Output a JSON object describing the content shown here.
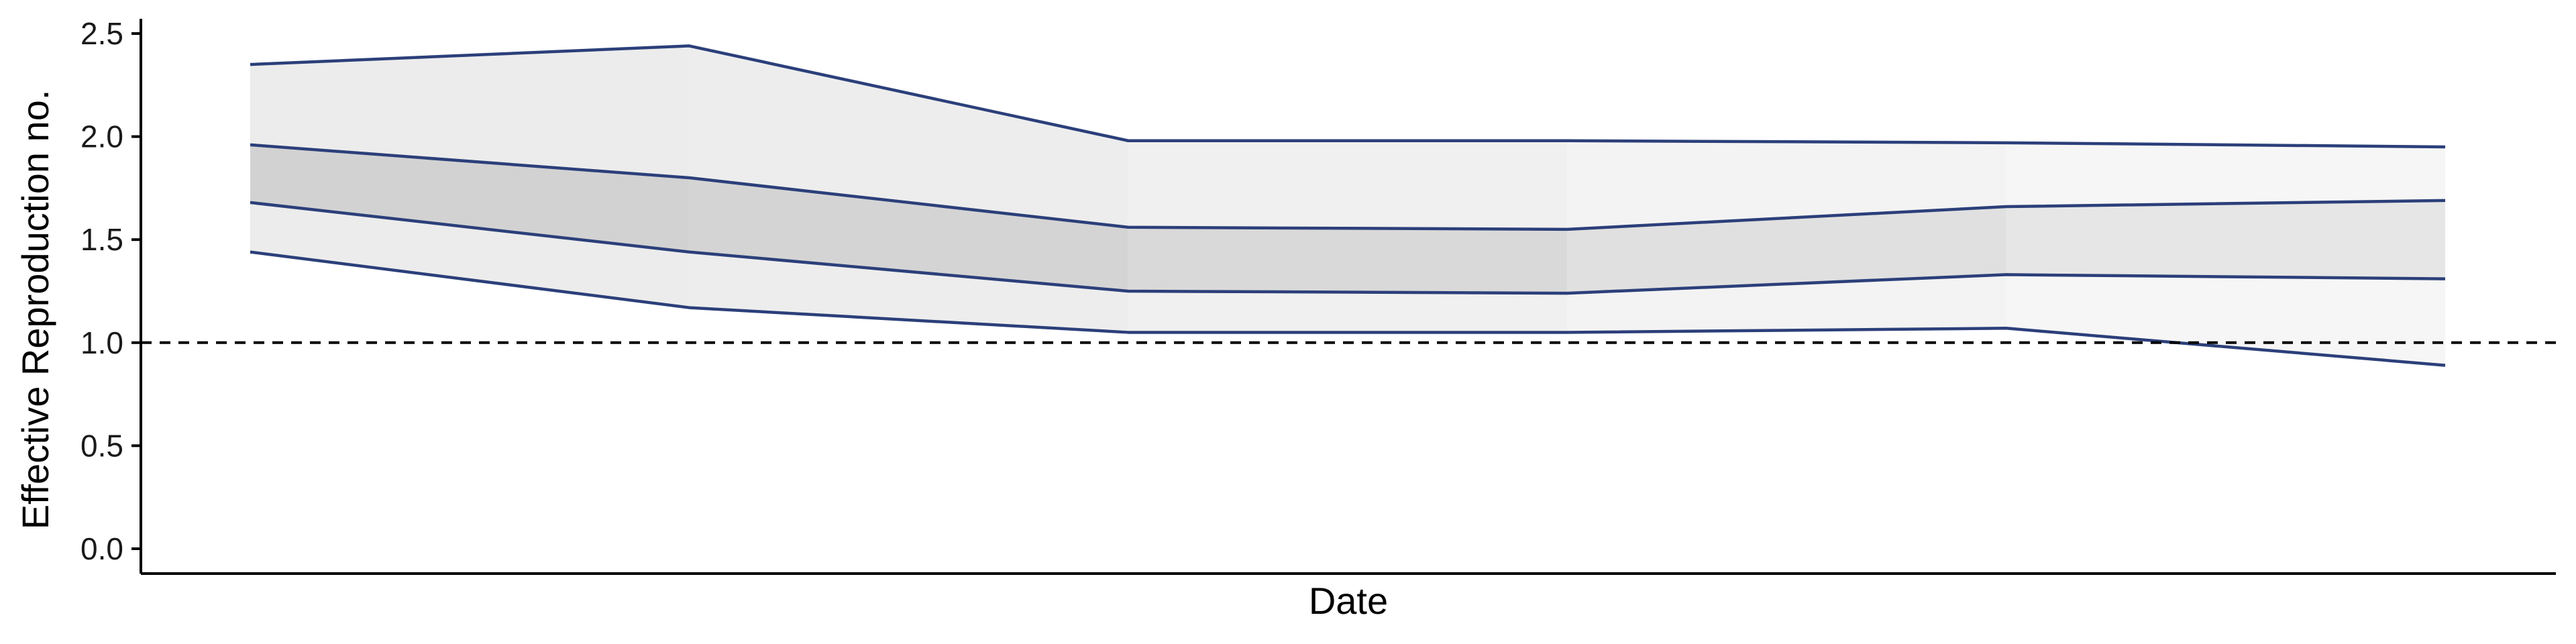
{
  "chart_data": {
    "type": "line",
    "xlabel": "Date",
    "ylabel": "Effective Reproduction no.",
    "ylim": [
      0,
      2.5
    ],
    "yticks": [
      "0.0",
      "0.5",
      "1.0",
      "1.5",
      "2.0",
      "2.5"
    ],
    "reference_line": {
      "y": 1.0,
      "style": "dashed"
    },
    "grid": false,
    "x_tick_labels": [],
    "series": [
      {
        "values": [
          2.35,
          2.44,
          1.98,
          1.98,
          1.97,
          1.95
        ]
      },
      {
        "values": [
          1.96,
          1.8,
          1.56,
          1.55,
          1.66,
          1.69
        ]
      },
      {
        "values": [
          1.68,
          1.44,
          1.25,
          1.24,
          1.33,
          1.31
        ]
      },
      {
        "values": [
          1.44,
          1.17,
          1.05,
          1.05,
          1.07,
          0.89
        ]
      }
    ],
    "colors": {
      "line": "#2b3f7a",
      "outer_band_shades": [
        "#ececec",
        "#ededed",
        "#f0f0f0",
        "#f3f3f3",
        "#f6f6f6"
      ],
      "inner_band_shades": [
        "#d2d2d2",
        "#d4d4d4",
        "#d9d9d9",
        "#e0e0e0",
        "#e6e6e6"
      ]
    }
  }
}
